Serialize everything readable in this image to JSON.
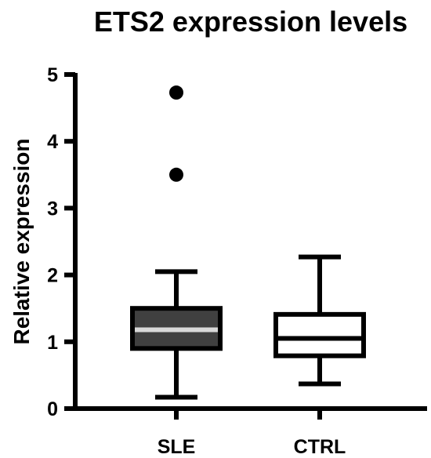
{
  "chart_data": {
    "type": "box",
    "title": "ETS2 expression levels",
    "xlabel": "",
    "ylabel": "Relative expression",
    "ylim": [
      0,
      5
    ],
    "yticks": [
      "0",
      "1",
      "2",
      "3",
      "4",
      "5"
    ],
    "grid": false,
    "categories": [
      "SLE",
      "CTRL"
    ],
    "boxes": [
      {
        "name": "SLE",
        "min": 0.17,
        "q1": 0.9,
        "median": 1.18,
        "q3": 1.5,
        "max": 2.05,
        "outliers": [
          3.5,
          4.73
        ],
        "fill": "#404040"
      },
      {
        "name": "CTRL",
        "min": 0.37,
        "q1": 0.79,
        "median": 1.05,
        "q3": 1.41,
        "max": 2.27,
        "outliers": [],
        "fill": "#ffffff"
      }
    ]
  }
}
